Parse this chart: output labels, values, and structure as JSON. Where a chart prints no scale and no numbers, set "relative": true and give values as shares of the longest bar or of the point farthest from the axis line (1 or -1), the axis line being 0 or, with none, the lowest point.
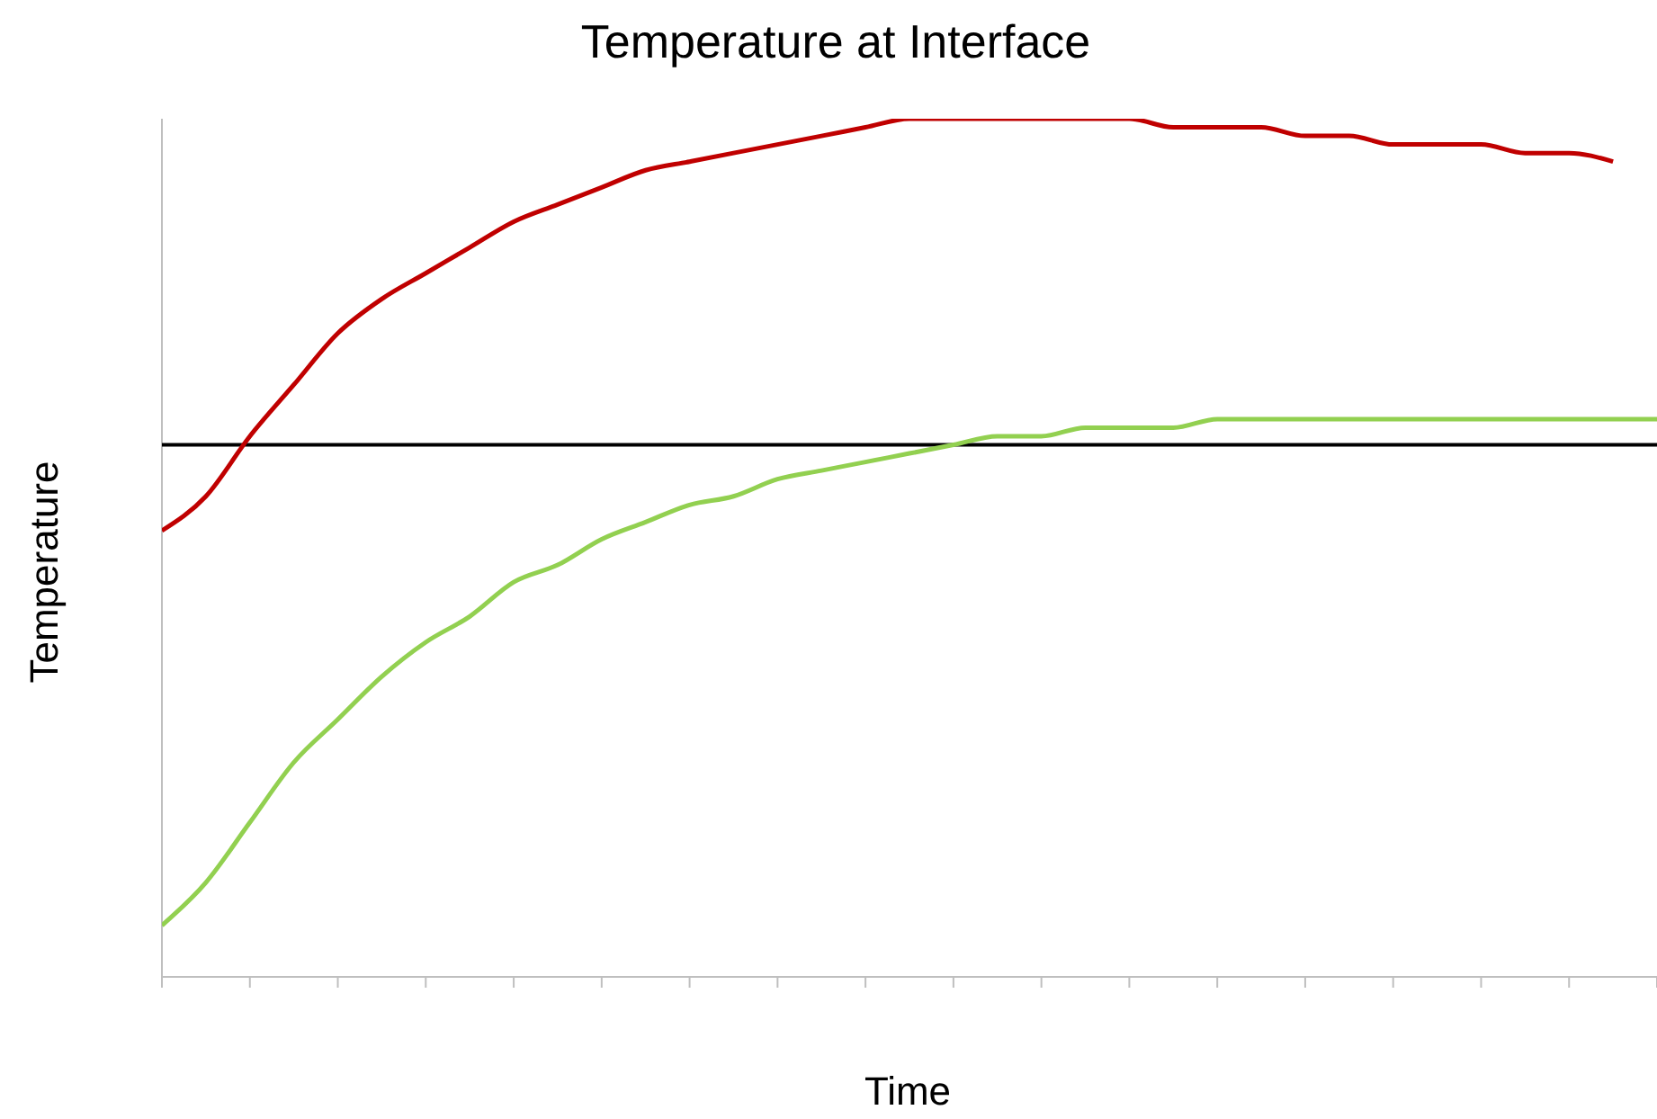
{
  "chart_data": {
    "type": "line",
    "title": "Temperature at Interface",
    "xlabel": "Time",
    "ylabel": "Temperature",
    "relative": true,
    "grid": false,
    "legend": false,
    "marker": "none",
    "line_style": "solid",
    "categories": [
      null,
      null,
      null,
      null,
      null,
      null,
      null,
      null,
      null,
      null,
      null,
      null,
      null,
      null,
      null,
      null,
      null,
      null,
      null,
      null,
      null,
      null,
      null,
      null,
      null,
      null,
      null,
      null,
      null,
      null,
      null,
      null,
      null,
      null,
      null
    ],
    "series": [
      {
        "color": "#c00000",
        "values": [
          0.52,
          0.56,
          0.63,
          0.69,
          0.75,
          0.79,
          0.82,
          0.85,
          0.88,
          0.9,
          0.92,
          0.94,
          0.95,
          0.96,
          0.97,
          0.98,
          0.99,
          1,
          1,
          1,
          1,
          1,
          1,
          0.99,
          0.99,
          0.99,
          0.98,
          0.98,
          0.97,
          0.97,
          0.97,
          0.96,
          0.96,
          0.95,
          null
        ]
      },
      {
        "color": "#92d050",
        "values": [
          0.06,
          0.11,
          0.18,
          0.25,
          0.3,
          0.35,
          0.39,
          0.42,
          0.46,
          0.48,
          0.51,
          0.53,
          0.55,
          0.56,
          0.58,
          0.59,
          0.6,
          0.61,
          0.62,
          0.63,
          0.63,
          0.64,
          0.64,
          0.64,
          0.65,
          0.65,
          0.65,
          0.65,
          0.65,
          0.65,
          0.65,
          0.65,
          0.65,
          0.65,
          0.65
        ]
      }
    ],
    "ref_lines": [
      {
        "axis": "y",
        "value": 0.62,
        "color": "#000000"
      }
    ]
  }
}
